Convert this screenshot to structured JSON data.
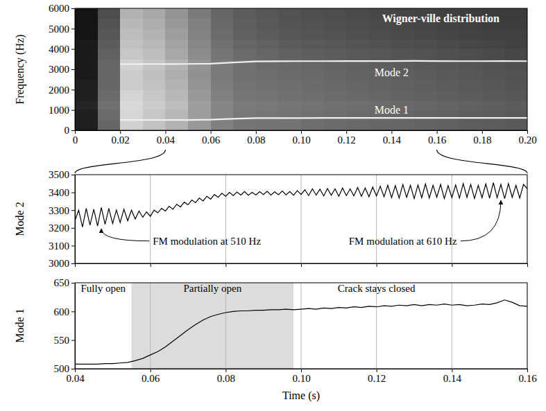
{
  "chart_data": [
    {
      "type": "heatmap",
      "title": "Wigner-ville distribution",
      "ylabel": "Frequency (Hz)",
      "xlim": [
        0,
        0.2
      ],
      "ylim": [
        0,
        6000
      ],
      "xticks": [
        0,
        0.02,
        0.04,
        0.06,
        0.08,
        {
          "value": 0.1,
          "label": "0.10"
        },
        {
          "value": 0.12,
          "label": "0.12"
        },
        0.14,
        0.16,
        0.18,
        {
          "value": 0.2,
          "label": "0.20"
        }
      ],
      "yticks": [
        0,
        1000,
        2000,
        3000,
        4000,
        5000,
        6000
      ],
      "zlim": [
        0,
        1
      ],
      "x_bins": [
        0,
        0.01,
        0.02,
        0.03,
        0.04,
        0.05,
        0.06,
        0.07,
        0.08,
        0.09,
        0.1,
        0.11,
        0.12,
        0.13,
        0.14,
        0.15,
        0.16,
        0.17,
        0.18,
        0.19,
        0.2
      ],
      "y_bins": [
        0,
        500,
        1000,
        1500,
        2000,
        2500,
        3000,
        3500,
        4000,
        4500,
        5000,
        5500,
        6000
      ],
      "cells": [
        [
          0.12,
          0.4,
          0.82,
          0.76,
          0.7,
          0.6,
          0.5,
          0.46,
          0.45,
          0.45,
          0.43,
          0.42,
          0.41,
          0.4,
          0.4,
          0.39,
          0.38,
          0.37,
          0.36,
          0.35
        ],
        [
          0.12,
          0.42,
          0.84,
          0.78,
          0.72,
          0.62,
          0.52,
          0.47,
          0.46,
          0.45,
          0.44,
          0.43,
          0.42,
          0.41,
          0.4,
          0.39,
          0.38,
          0.37,
          0.36,
          0.35
        ],
        [
          0.14,
          0.44,
          0.85,
          0.8,
          0.74,
          0.62,
          0.52,
          0.48,
          0.47,
          0.46,
          0.45,
          0.44,
          0.43,
          0.42,
          0.41,
          0.4,
          0.39,
          0.38,
          0.37,
          0.36
        ],
        [
          0.12,
          0.42,
          0.83,
          0.78,
          0.72,
          0.6,
          0.5,
          0.46,
          0.45,
          0.44,
          0.43,
          0.42,
          0.41,
          0.4,
          0.39,
          0.38,
          0.37,
          0.36,
          0.35,
          0.34
        ],
        [
          0.12,
          0.4,
          0.8,
          0.76,
          0.7,
          0.58,
          0.49,
          0.45,
          0.44,
          0.43,
          0.42,
          0.41,
          0.4,
          0.39,
          0.38,
          0.37,
          0.36,
          0.35,
          0.34,
          0.33
        ],
        [
          0.1,
          0.4,
          0.8,
          0.75,
          0.68,
          0.57,
          0.48,
          0.44,
          0.43,
          0.42,
          0.41,
          0.4,
          0.39,
          0.38,
          0.37,
          0.36,
          0.35,
          0.34,
          0.33,
          0.32
        ],
        [
          0.1,
          0.4,
          0.82,
          0.77,
          0.7,
          0.58,
          0.48,
          0.44,
          0.42,
          0.41,
          0.4,
          0.39,
          0.38,
          0.37,
          0.36,
          0.35,
          0.34,
          0.33,
          0.32,
          0.31
        ],
        [
          0.1,
          0.38,
          0.78,
          0.74,
          0.66,
          0.55,
          0.46,
          0.42,
          0.4,
          0.38,
          0.37,
          0.36,
          0.35,
          0.34,
          0.33,
          0.32,
          0.31,
          0.3,
          0.29,
          0.28
        ],
        [
          0.1,
          0.36,
          0.76,
          0.72,
          0.64,
          0.53,
          0.44,
          0.4,
          0.38,
          0.36,
          0.35,
          0.34,
          0.33,
          0.32,
          0.31,
          0.3,
          0.29,
          0.28,
          0.27,
          0.26
        ],
        [
          0.08,
          0.34,
          0.74,
          0.7,
          0.62,
          0.51,
          0.42,
          0.38,
          0.36,
          0.34,
          0.33,
          0.32,
          0.31,
          0.3,
          0.29,
          0.28,
          0.27,
          0.26,
          0.25,
          0.25
        ],
        [
          0.08,
          0.32,
          0.72,
          0.68,
          0.6,
          0.5,
          0.41,
          0.37,
          0.35,
          0.33,
          0.32,
          0.31,
          0.3,
          0.29,
          0.28,
          0.27,
          0.26,
          0.25,
          0.24,
          0.24
        ],
        [
          0.08,
          0.3,
          0.7,
          0.66,
          0.58,
          0.48,
          0.4,
          0.36,
          0.34,
          0.32,
          0.31,
          0.3,
          0.29,
          0.28,
          0.27,
          0.26,
          0.25,
          0.24,
          0.23,
          0.23
        ]
      ],
      "series": [
        {
          "name": "Mode 2",
          "color": "#f0f0f0",
          "x": [
            0.02,
            0.03,
            0.04,
            0.05,
            0.06,
            0.07,
            0.08,
            0.09,
            0.1,
            0.11,
            0.12,
            0.13,
            0.14,
            0.15,
            0.16,
            0.17,
            0.18,
            0.19,
            0.2
          ],
          "values": [
            3250,
            3260,
            3260,
            3265,
            3280,
            3340,
            3390,
            3395,
            3400,
            3400,
            3405,
            3405,
            3405,
            3410,
            3405,
            3400,
            3400,
            3405,
            3400
          ]
        },
        {
          "name": "Mode 1",
          "color": "#f0f0f0",
          "x": [
            0.02,
            0.03,
            0.04,
            0.05,
            0.06,
            0.07,
            0.08,
            0.09,
            0.1,
            0.11,
            0.12,
            0.13,
            0.14,
            0.15,
            0.16,
            0.17,
            0.18,
            0.19,
            0.2
          ],
          "values": [
            510,
            510,
            508,
            509,
            524,
            568,
            598,
            602,
            604,
            607,
            608,
            612,
            611,
            612,
            609,
            610,
            611,
            610,
            610
          ]
        }
      ]
    },
    {
      "type": "line",
      "ylabel": "Mode 2",
      "color": "#000000",
      "grid": "x",
      "tick_labels": "y",
      "xlim": [
        0.04,
        0.16
      ],
      "ylim": [
        3000,
        3500
      ],
      "xticks": [
        0.04,
        0.06,
        0.08,
        {
          "value": 0.1,
          "label": "0.10"
        },
        {
          "value": 0.12,
          "label": "0.12"
        },
        0.14,
        0.16
      ],
      "yticks": [
        3000,
        3100,
        3200,
        3300,
        3400,
        3500
      ],
      "x": [
        0.04,
        0.041,
        0.042,
        0.043,
        0.044,
        0.045,
        0.046,
        0.047,
        0.048,
        0.049,
        0.05,
        0.051,
        0.052,
        0.053,
        0.054,
        0.055,
        0.056,
        0.057,
        0.058,
        0.059,
        0.06,
        0.061,
        0.062,
        0.063,
        0.064,
        0.065,
        0.066,
        0.067,
        0.068,
        0.069,
        0.07,
        0.071,
        0.072,
        0.073,
        0.074,
        0.075,
        0.076,
        0.077,
        0.078,
        0.079,
        0.08,
        0.081,
        0.082,
        0.083,
        0.084,
        0.085,
        0.086,
        0.087,
        0.088,
        0.089,
        0.09,
        0.091,
        0.092,
        0.093,
        0.094,
        0.095,
        0.096,
        0.097,
        0.098,
        0.099,
        0.1,
        0.101,
        0.102,
        0.103,
        0.104,
        0.105,
        0.106,
        0.107,
        0.108,
        0.109,
        0.11,
        0.111,
        0.112,
        0.113,
        0.114,
        0.115,
        0.116,
        0.117,
        0.118,
        0.119,
        0.12,
        0.121,
        0.122,
        0.123,
        0.124,
        0.125,
        0.126,
        0.127,
        0.128,
        0.129,
        0.13,
        0.131,
        0.132,
        0.133,
        0.134,
        0.135,
        0.136,
        0.137,
        0.138,
        0.139,
        0.14,
        0.141,
        0.142,
        0.143,
        0.144,
        0.145,
        0.146,
        0.147,
        0.148,
        0.149,
        0.15,
        0.151,
        0.152,
        0.153,
        0.154,
        0.155,
        0.156,
        0.157,
        0.158,
        0.159,
        0.16
      ],
      "values": [
        3240,
        3300,
        3205,
        3310,
        3215,
        3305,
        3210,
        3315,
        3220,
        3310,
        3225,
        3300,
        3230,
        3305,
        3240,
        3300,
        3250,
        3295,
        3260,
        3290,
        3265,
        3300,
        3285,
        3310,
        3295,
        3322,
        3305,
        3333,
        3318,
        3345,
        3330,
        3357,
        3342,
        3368,
        3352,
        3378,
        3362,
        3388,
        3372,
        3395,
        3378,
        3400,
        3382,
        3402,
        3385,
        3405,
        3384,
        3400,
        3386,
        3404,
        3388,
        3406,
        3385,
        3403,
        3387,
        3408,
        3386,
        3405,
        3384,
        3410,
        3388,
        3415,
        3382,
        3420,
        3385,
        3418,
        3380,
        3422,
        3384,
        3420,
        3378,
        3425,
        3382,
        3420,
        3380,
        3428,
        3378,
        3425,
        3375,
        3430,
        3380,
        3435,
        3375,
        3440,
        3370,
        3438,
        3368,
        3445,
        3372,
        3440,
        3365,
        3442,
        3370,
        3448,
        3368,
        3440,
        3372,
        3445,
        3365,
        3438,
        3370,
        3442,
        3368,
        3450,
        3372,
        3445,
        3366,
        3440,
        3370,
        3448,
        3368,
        3455,
        3370,
        3445,
        3365,
        3450,
        3372,
        3440,
        3368,
        3445,
        3420
      ],
      "annotations": [
        {
          "text": "FM modulation at 510 Hz",
          "xy": [
            0.075,
            3120
          ],
          "arrow": [
            0.047,
            3195
          ]
        },
        {
          "text": "FM modulation at 610 Hz",
          "xy": [
            0.127,
            3120
          ],
          "arrow": [
            0.153,
            3355
          ]
        }
      ]
    },
    {
      "type": "line",
      "ylabel": "Mode 1",
      "xlabel": "Time (s)",
      "color": "#000000",
      "grid": "x",
      "xlim": [
        0.04,
        0.16
      ],
      "ylim": [
        500,
        650
      ],
      "xticks": [
        0.04,
        0.06,
        0.08,
        {
          "value": 0.1,
          "label": "0.10"
        },
        {
          "value": 0.12,
          "label": "0.12"
        },
        0.14,
        0.16
      ],
      "yticks": [
        500,
        550,
        600,
        650
      ],
      "shaded_region": [
        0.055,
        0.098
      ],
      "x": [
        0.04,
        0.042,
        0.044,
        0.046,
        0.048,
        0.05,
        0.052,
        0.054,
        0.056,
        0.058,
        0.06,
        0.062,
        0.064,
        0.066,
        0.068,
        0.07,
        0.072,
        0.074,
        0.076,
        0.078,
        0.08,
        0.082,
        0.084,
        0.086,
        0.088,
        0.09,
        0.092,
        0.094,
        0.096,
        0.098,
        0.1,
        0.102,
        0.104,
        0.106,
        0.108,
        0.11,
        0.112,
        0.114,
        0.116,
        0.118,
        0.12,
        0.122,
        0.124,
        0.126,
        0.128,
        0.13,
        0.132,
        0.134,
        0.136,
        0.138,
        0.14,
        0.142,
        0.144,
        0.146,
        0.148,
        0.15,
        0.152,
        0.154,
        0.156,
        0.158,
        0.16
      ],
      "values": [
        508,
        508,
        508,
        508,
        509,
        509,
        510,
        511,
        514,
        518,
        524,
        530,
        538,
        548,
        558,
        568,
        577,
        585,
        591,
        595,
        598,
        600,
        601,
        601,
        602,
        602,
        603,
        603,
        604,
        603,
        604,
        605,
        604,
        606,
        605,
        607,
        606,
        608,
        607,
        609,
        608,
        610,
        609,
        611,
        610,
        612,
        610,
        612,
        611,
        613,
        611,
        612,
        610,
        611,
        613,
        612,
        615,
        620,
        616,
        610,
        609
      ],
      "annotations": [
        {
          "text": "Fully open",
          "xy": [
            0.0475,
            638
          ]
        },
        {
          "text": "Partially open",
          "xy": [
            0.0765,
            638
          ]
        },
        {
          "text": "Crack stays closed",
          "xy": [
            0.12,
            638
          ]
        }
      ]
    }
  ]
}
